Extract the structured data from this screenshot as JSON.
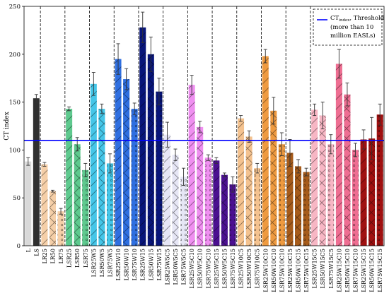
{
  "chart_data": {
    "type": "bar",
    "ylabel": "CT index",
    "ylim": [
      0,
      250
    ],
    "yticks": [
      0,
      50,
      100,
      150,
      200,
      250
    ],
    "threshold": 110,
    "threshold_color": "#0000ff",
    "group_separators_after": [
      1,
      4,
      7,
      10,
      13,
      16,
      19,
      22,
      25,
      28,
      31,
      34
    ],
    "categories": [
      "L",
      "LS",
      "LR25",
      "LR50",
      "LR75",
      "LSR25",
      "LSR50",
      "LSR75",
      "LSR25W5",
      "LSR50W5",
      "LSR75W5",
      "LSR25W10",
      "LSR50W10",
      "LSR75W10",
      "LSR25W15",
      "LSR50W15",
      "LSR75W15",
      "LSR25W5C5",
      "LSR50W5C5",
      "LSR75W5C5",
      "LSR25W5C10",
      "LSR50W5C10",
      "LSR75W5C10",
      "LSR25W5C15",
      "LSR50W5C15",
      "LSR75W5C15",
      "LSR25W10C5",
      "LSR50W10C5",
      "LSR75W10C5",
      "LSR25W10C10",
      "LSR50W10C10",
      "LSR75W10C10",
      "LSR25W10C15",
      "LSR50W10C15",
      "LSR75W10C15",
      "LSR25W15C5",
      "LSR50W15C5",
      "LSR75W15C5",
      "LSR25W15C10",
      "LSR50W15C10",
      "LSR75W15C10",
      "LSR25W15C15",
      "LSR50W15C15",
      "LSR75W15C15"
    ],
    "values": [
      88,
      154,
      85,
      57,
      36,
      143,
      106,
      79,
      169,
      143,
      86,
      195,
      174,
      143,
      228,
      200,
      161,
      116,
      95,
      72,
      168,
      124,
      92,
      89,
      74,
      64,
      133,
      114,
      81,
      198,
      141,
      106,
      97,
      83,
      77,
      142,
      136,
      106,
      190,
      158,
      100,
      111,
      112,
      137
    ],
    "errors": [
      4,
      4,
      2,
      1,
      3,
      2,
      7,
      7,
      12,
      5,
      10,
      16,
      11,
      6,
      16,
      18,
      14,
      13,
      6,
      9,
      10,
      6,
      3,
      3,
      2,
      8,
      3,
      6,
      5,
      7,
      14,
      12,
      14,
      7,
      4,
      6,
      14,
      10,
      15,
      12,
      7,
      10,
      22,
      11
    ],
    "colors": [
      "#d9d9d9",
      "#303030",
      "#f5cfa8",
      "#f5cfa8",
      "#f5cfa8",
      "#5ec98e",
      "#5ec98e",
      "#5ec98e",
      "#45c6e8",
      "#45c6e8",
      "#45c6e8",
      "#2f6fe0",
      "#2f6fe0",
      "#2f6fe0",
      "#08157a",
      "#08157a",
      "#08157a",
      "#e6e6f5",
      "#e6e6f5",
      "#e6e6f5",
      "#ef8ff0",
      "#ef8ff0",
      "#ef8ff0",
      "#4b1090",
      "#4b1090",
      "#4b1090",
      "#f4c28f",
      "#f4c28f",
      "#f4c28f",
      "#ee9a40",
      "#ee9a40",
      "#ee9a40",
      "#a65b1a",
      "#a65b1a",
      "#a65b1a",
      "#f7b6c4",
      "#f7b6c4",
      "#f7b6c4",
      "#ee6e92",
      "#ee6e92",
      "#ee6e92",
      "#a01010",
      "#a01010",
      "#a01010"
    ],
    "patterns": [
      "none",
      "none",
      "slash",
      "cross",
      "dot",
      "slash",
      "cross",
      "dot",
      "slash",
      "cross",
      "dot",
      "slash",
      "cross",
      "dot",
      "slash",
      "cross",
      "dot",
      "slash",
      "cross",
      "dot",
      "slash",
      "cross",
      "dot",
      "slash",
      "cross",
      "dot",
      "slash",
      "cross",
      "dot",
      "slash",
      "cross",
      "dot",
      "slash",
      "cross",
      "dot",
      "slash",
      "cross",
      "dot",
      "slash",
      "cross",
      "dot",
      "slash",
      "cross",
      "dot"
    ],
    "legend": {
      "placement": "top-right",
      "line1_prefix": "CT",
      "line1_sub": "index",
      "line1_suffix": ", Threshold",
      "line2": "(more than 10",
      "line3": "million EASLs)"
    }
  }
}
